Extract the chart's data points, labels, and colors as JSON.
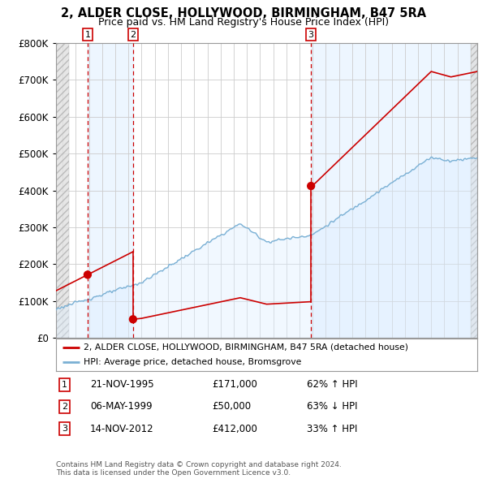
{
  "title": "2, ALDER CLOSE, HOLLYWOOD, BIRMINGHAM, B47 5RA",
  "subtitle": "Price paid vs. HM Land Registry's House Price Index (HPI)",
  "property_label": "2, ALDER CLOSE, HOLLYWOOD, BIRMINGHAM, B47 5RA (detached house)",
  "hpi_label": "HPI: Average price, detached house, Bromsgrove",
  "transactions": [
    {
      "num": 1,
      "date": "21-NOV-1995",
      "price": 171000,
      "pct": "62%",
      "dir": "↑",
      "year_x": 1995.9
    },
    {
      "num": 2,
      "date": "06-MAY-1999",
      "price": 50000,
      "pct": "63%",
      "dir": "↓",
      "year_x": 1999.35
    },
    {
      "num": 3,
      "date": "14-NOV-2012",
      "price": 412000,
      "pct": "33%",
      "dir": "↑",
      "year_x": 2012.87
    }
  ],
  "footer": "Contains HM Land Registry data © Crown copyright and database right 2024.\nThis data is licensed under the Open Government Licence v3.0.",
  "property_color": "#cc0000",
  "hpi_color": "#7ab0d4",
  "hpi_fill_color": "#ddeeff",
  "dashed_line_color": "#cc0000",
  "shade_color": "#ddeeff",
  "hatch_color": "#c8c8c8",
  "ylim": [
    0,
    800000
  ],
  "yticks": [
    0,
    100000,
    200000,
    300000,
    400000,
    500000,
    600000,
    700000,
    800000
  ],
  "xlim_start": 1993.5,
  "xlim_end": 2025.5,
  "background_color": "#ffffff",
  "plot_bg_color": "#ffffff",
  "grid_color": "#cccccc"
}
